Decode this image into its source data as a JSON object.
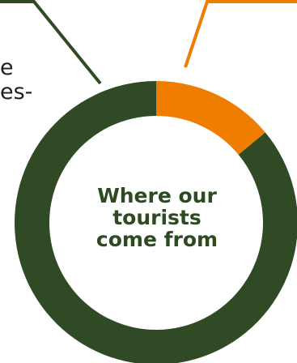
{
  "chart_data": {
    "type": "pie",
    "title_lines": [
      "Where our",
      "tourists",
      "come from"
    ],
    "slices": [
      {
        "value": 14,
        "color": "#ef7d00"
      },
      {
        "value": 86,
        "color": "#2f4a24"
      }
    ],
    "leader_colors": [
      "#2f4a24",
      "#ef7d00"
    ]
  },
  "fragments": {
    "line1": "e",
    "line2": "es-"
  }
}
